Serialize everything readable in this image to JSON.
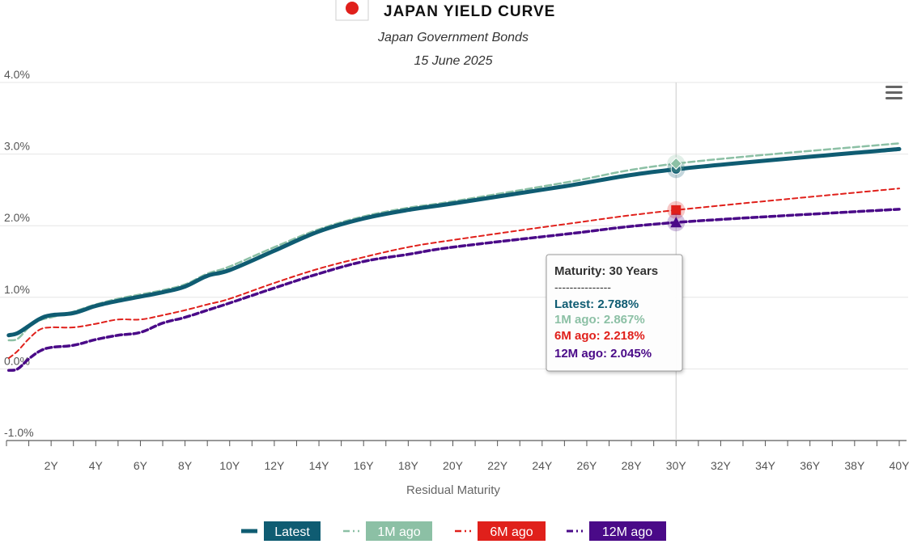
{
  "header": {
    "flag_icon": "japan-flag-icon",
    "title": "JAPAN YIELD CURVE",
    "subtitle": "Japan Government Bonds",
    "date": "15 June 2025"
  },
  "menu_icon": "hamburger-menu-icon",
  "colors": {
    "latest": "#0f5c72",
    "m1": "#8cc0a5",
    "m6": "#e0201b",
    "m12": "#4a0a88",
    "grid": "#e6e6e6",
    "crosshair": "#cccccc"
  },
  "chart_data": {
    "type": "line",
    "title": "JAPAN YIELD CURVE",
    "subtitle": "Japan Government Bonds",
    "date": "15 June 2025",
    "xlabel": "Residual Maturity",
    "ylabel": "",
    "xlim": [
      0,
      40
    ],
    "ylim": [
      -1.0,
      4.0
    ],
    "x_ticks": [
      2,
      4,
      6,
      8,
      10,
      12,
      14,
      16,
      18,
      20,
      22,
      24,
      26,
      28,
      30,
      32,
      34,
      36,
      38,
      40
    ],
    "x_tick_labels": [
      "2Y",
      "4Y",
      "6Y",
      "8Y",
      "10Y",
      "12Y",
      "14Y",
      "16Y",
      "18Y",
      "20Y",
      "22Y",
      "24Y",
      "26Y",
      "28Y",
      "30Y",
      "32Y",
      "34Y",
      "36Y",
      "38Y",
      "40Y"
    ],
    "y_ticks": [
      -1.0,
      0.0,
      1.0,
      2.0,
      3.0,
      4.0
    ],
    "y_tick_labels": [
      "-1.0%",
      "0.0%",
      "1.0%",
      "2.0%",
      "3.0%",
      "4.0%"
    ],
    "grid": true,
    "legend_position": "bottom-center",
    "series": [
      {
        "name": "Latest",
        "style": "solid",
        "x": [
          0.1,
          0.5,
          1,
          1.5,
          2,
          3,
          4,
          5,
          6,
          7,
          8,
          9,
          10,
          12,
          14,
          16,
          18,
          20,
          25,
          30,
          40
        ],
        "values": [
          0.47,
          0.5,
          0.6,
          0.7,
          0.75,
          0.78,
          0.88,
          0.95,
          1.01,
          1.07,
          1.15,
          1.3,
          1.38,
          1.65,
          1.92,
          2.1,
          2.22,
          2.31,
          2.55,
          2.788,
          3.07
        ]
      },
      {
        "name": "1M ago",
        "style": "dashed",
        "x": [
          0.1,
          0.5,
          1,
          1.5,
          2,
          3,
          4,
          5,
          6,
          7,
          8,
          9,
          10,
          12,
          14,
          16,
          18,
          20,
          25,
          30,
          40
        ],
        "values": [
          0.4,
          0.42,
          0.58,
          0.68,
          0.72,
          0.8,
          0.9,
          0.98,
          1.04,
          1.1,
          1.18,
          1.33,
          1.43,
          1.7,
          1.95,
          2.13,
          2.25,
          2.34,
          2.6,
          2.867,
          3.15
        ]
      },
      {
        "name": "6M ago",
        "style": "dashed",
        "x": [
          0.1,
          0.5,
          1,
          1.5,
          2,
          3,
          4,
          5,
          6,
          7,
          8,
          9,
          10,
          12,
          14,
          16,
          18,
          20,
          25,
          30,
          40
        ],
        "values": [
          0.15,
          0.25,
          0.42,
          0.55,
          0.58,
          0.58,
          0.63,
          0.69,
          0.69,
          0.75,
          0.82,
          0.9,
          0.98,
          1.2,
          1.4,
          1.56,
          1.7,
          1.8,
          2.02,
          2.218,
          2.52
        ]
      },
      {
        "name": "12M ago",
        "style": "dashed",
        "x": [
          0.1,
          0.5,
          1,
          1.5,
          2,
          3,
          4,
          5,
          6,
          7,
          8,
          9,
          10,
          12,
          14,
          16,
          18,
          20,
          25,
          30,
          40
        ],
        "values": [
          -0.02,
          0.0,
          0.14,
          0.25,
          0.3,
          0.33,
          0.41,
          0.47,
          0.51,
          0.64,
          0.72,
          0.82,
          0.92,
          1.13,
          1.33,
          1.5,
          1.6,
          1.7,
          1.88,
          2.045,
          2.23
        ]
      }
    ],
    "crosshair_x": 30,
    "markers": [
      {
        "series": "Latest",
        "x": 30,
        "value": 2.788,
        "shape": "circle"
      },
      {
        "series": "1M ago",
        "x": 30,
        "value": 2.867,
        "shape": "diamond"
      },
      {
        "series": "6M ago",
        "x": 30,
        "value": 2.218,
        "shape": "square"
      },
      {
        "series": "12M ago",
        "x": 30,
        "value": 2.045,
        "shape": "triangle"
      }
    ]
  },
  "tooltip": {
    "title": "Maturity: 30 Years",
    "separator": "---------------",
    "rows": [
      {
        "label": "Latest: 2.788%"
      },
      {
        "label": "1M ago: 2.867%"
      },
      {
        "label": "6M ago: 2.218%"
      },
      {
        "label": "12M ago: 2.045%"
      }
    ]
  },
  "legend": [
    {
      "label": "Latest"
    },
    {
      "label": "1M ago"
    },
    {
      "label": "6M ago"
    },
    {
      "label": "12M ago"
    }
  ]
}
